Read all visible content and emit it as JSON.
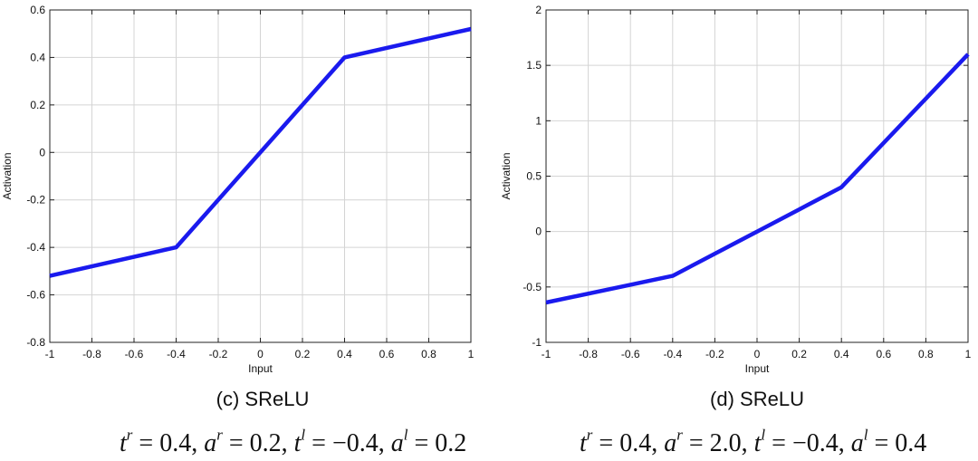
{
  "chart_data": [
    {
      "type": "line",
      "caption": "(c) SReLU",
      "xlabel": "Input",
      "ylabel": "Activation",
      "xlim": [
        -1,
        1
      ],
      "ylim": [
        -0.8,
        0.6
      ],
      "xticks": [
        "-1",
        "-0.8",
        "-0.6",
        "-0.4",
        "-0.2",
        "0",
        "0.2",
        "0.4",
        "0.6",
        "0.8",
        "1"
      ],
      "yticks": [
        "-0.8",
        "-0.6",
        "-0.4",
        "-0.2",
        "0",
        "0.2",
        "0.4",
        "0.6"
      ],
      "grid": true,
      "series": [
        {
          "x": [
            -1,
            -0.4,
            0.4,
            1
          ],
          "y": [
            -0.52,
            -0.4,
            0.4,
            0.52
          ],
          "color": "#1a1aee"
        }
      ],
      "params": {
        "tr": "0.4",
        "ar": "0.2",
        "tl": "−0.4",
        "al": "0.2"
      }
    },
    {
      "type": "line",
      "caption": "(d) SReLU",
      "xlabel": "Input",
      "ylabel": "Activation",
      "xlim": [
        -1,
        1
      ],
      "ylim": [
        -1,
        2
      ],
      "xticks": [
        "-1",
        "-0.8",
        "-0.6",
        "-0.4",
        "-0.2",
        "0",
        "0.2",
        "0.4",
        "0.6",
        "0.8",
        "1"
      ],
      "yticks": [
        "-1",
        "-0.5",
        "0",
        "0.5",
        "1",
        "1.5",
        "2"
      ],
      "grid": true,
      "series": [
        {
          "x": [
            -1,
            -0.6,
            -0.4,
            -0.2,
            0,
            0.2,
            0.4,
            0.6,
            0.8,
            1
          ],
          "y": [
            -0.64,
            -0.48,
            -0.4,
            -0.2,
            0,
            0.2,
            0.4,
            0.8,
            1.2,
            1.6
          ],
          "color": "#1a1aee"
        }
      ],
      "params": {
        "tr": "0.4",
        "ar": "2.0",
        "tl": "−0.4",
        "al": "0.4"
      }
    }
  ]
}
